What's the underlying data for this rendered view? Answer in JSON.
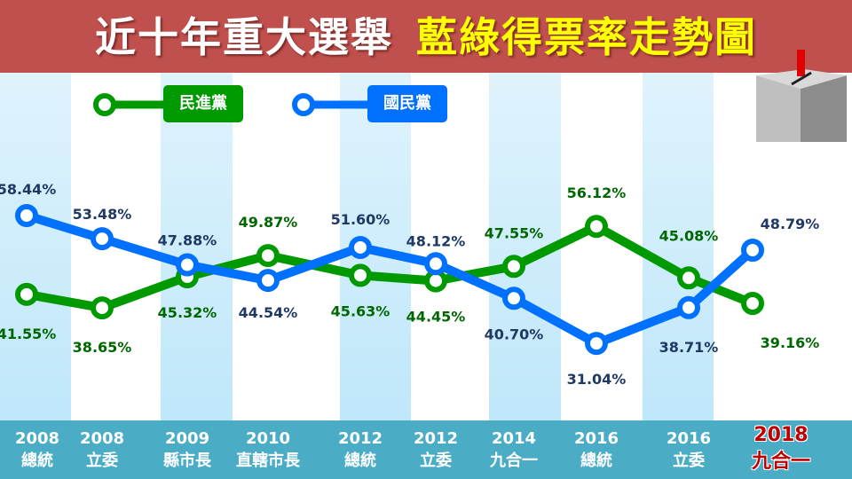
{
  "title": {
    "part1": "近十年重大選舉",
    "part2": "藍綠得票率走勢圖"
  },
  "colors": {
    "dpp": "#009900",
    "kmt": "#0070ff",
    "dpp_text": "#006600",
    "kmt_text": "#1f3864",
    "header": "#c0504d"
  },
  "chart_data": {
    "type": "line",
    "title": "近十年重大選舉 藍綠得票率走勢圖",
    "categories": [
      {
        "year": "2008",
        "name": "總統"
      },
      {
        "year": "2008",
        "name": "立委"
      },
      {
        "year": "2009",
        "name": "縣市長"
      },
      {
        "year": "2010",
        "name": "直轄市長"
      },
      {
        "year": "2012",
        "name": "總統"
      },
      {
        "year": "2012",
        "name": "立委"
      },
      {
        "year": "2014",
        "name": "九合一"
      },
      {
        "year": "2016",
        "name": "總統"
      },
      {
        "year": "2016",
        "name": "立委"
      },
      {
        "year": "2018",
        "name": "九合一"
      }
    ],
    "series": [
      {
        "name": "民進黨",
        "color": "#009900",
        "values": [
          41.55,
          38.65,
          45.32,
          49.87,
          45.63,
          44.45,
          47.55,
          56.12,
          45.08,
          39.16
        ],
        "labels": [
          "41.55%",
          "38.65%",
          "45.32%",
          "49.87%",
          "45.63%",
          "44.45%",
          "47.55%",
          "56.12%",
          "45.08%",
          "39.16%"
        ]
      },
      {
        "name": "國民黨",
        "color": "#0070ff",
        "values": [
          58.44,
          53.48,
          47.88,
          44.54,
          51.6,
          48.12,
          40.7,
          31.04,
          38.71,
          48.79
        ],
        "labels": [
          "58.44%",
          "53.48%",
          "47.88%",
          "44.54%",
          "51.60%",
          "48.12%",
          "40.70%",
          "31.04%",
          "38.71%",
          "48.79%"
        ]
      }
    ],
    "legend": "top-left",
    "grid": false
  }
}
